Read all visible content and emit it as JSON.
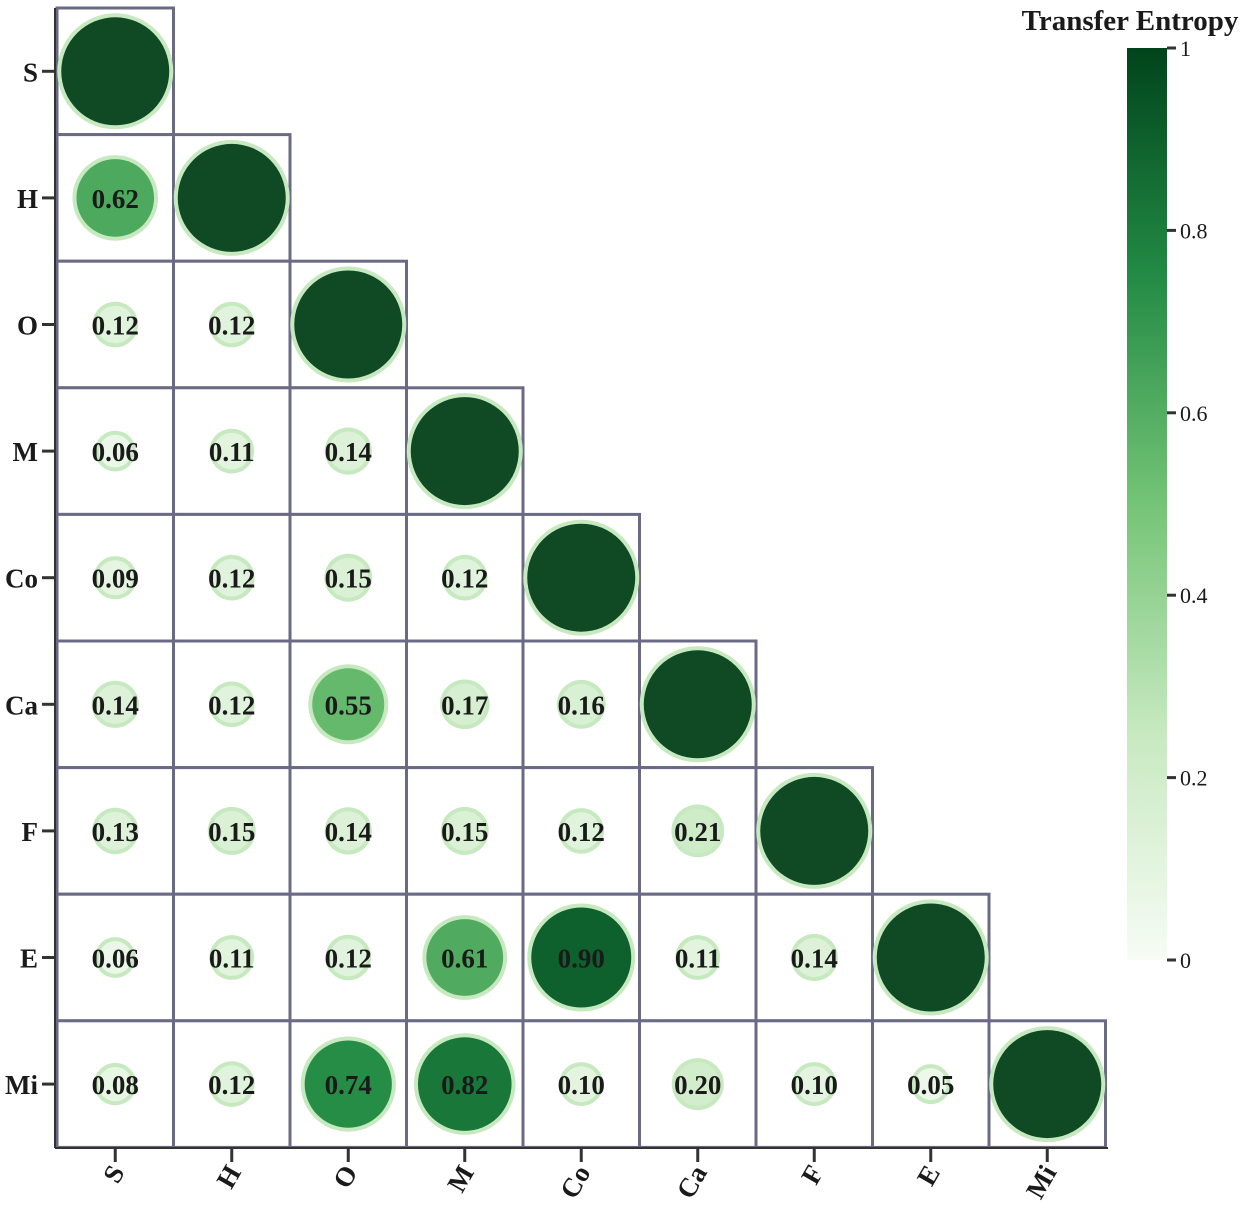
{
  "chart_data": {
    "type": "heatmap",
    "style": "lower-triangle bubble correlation matrix",
    "variables": [
      "S",
      "H",
      "O",
      "M",
      "Co",
      "Ca",
      "F",
      "E",
      "Mi"
    ],
    "matrix": [
      [
        1
      ],
      [
        0.62,
        1
      ],
      [
        0.12,
        0.12,
        1
      ],
      [
        0.06,
        0.11,
        0.14,
        1
      ],
      [
        0.09,
        0.12,
        0.15,
        0.12,
        1
      ],
      [
        0.14,
        0.12,
        0.55,
        0.17,
        0.16,
        1
      ],
      [
        0.13,
        0.15,
        0.14,
        0.15,
        0.12,
        0.21,
        1
      ],
      [
        0.06,
        0.11,
        0.12,
        0.61,
        0.9,
        0.11,
        0.14,
        1
      ],
      [
        0.08,
        0.12,
        0.74,
        0.82,
        0.1,
        0.2,
        0.1,
        0.05,
        1
      ]
    ],
    "value_labels": [
      [
        ""
      ],
      [
        "0.62",
        ""
      ],
      [
        "0.12",
        "0.12",
        ""
      ],
      [
        "0.06",
        "0.11",
        "0.14",
        ""
      ],
      [
        "0.09",
        "0.12",
        "0.15",
        "0.12",
        ""
      ],
      [
        "0.14",
        "0.12",
        "0.55",
        "0.17",
        "0.16",
        ""
      ],
      [
        "0.13",
        "0.15",
        "0.14",
        "0.15",
        "0.12",
        "0.21",
        ""
      ],
      [
        "0.06",
        "0.11",
        "0.12",
        "0.61",
        "0.90",
        "0.11",
        "0.14",
        ""
      ],
      [
        "0.08",
        "0.12",
        "0.74",
        "0.82",
        "0.10",
        "0.20",
        "0.10",
        "0.05",
        ""
      ]
    ],
    "colorbar": {
      "title": "Transfer Entropy",
      "range": [
        0,
        1
      ],
      "ticks": [
        "0",
        "0.2",
        "0.4",
        "0.6",
        "0.8",
        "1"
      ],
      "colormap": [
        "#f7fcf5",
        "#c7e9c0",
        "#74c476",
        "#238b45",
        "#00441b"
      ]
    },
    "colors": {
      "cell_border": "#6b6a85",
      "halo": "#c7e9c0",
      "diagonal": "#0f4a25"
    }
  }
}
